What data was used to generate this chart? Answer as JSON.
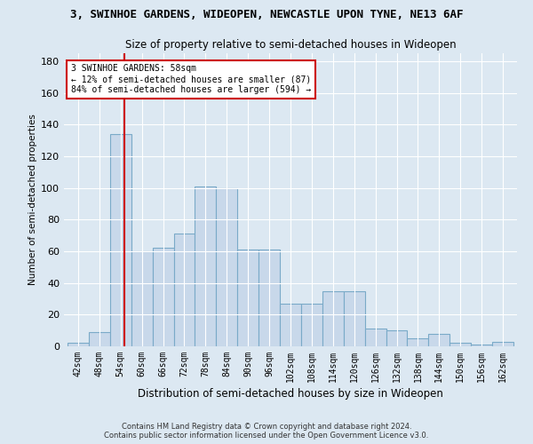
{
  "title1": "3, SWINHOE GARDENS, WIDEOPEN, NEWCASTLE UPON TYNE, NE13 6AF",
  "title2": "Size of property relative to semi-detached houses in Wideopen",
  "xlabel": "Distribution of semi-detached houses by size in Wideopen",
  "ylabel": "Number of semi-detached properties",
  "bins": [
    42,
    48,
    54,
    60,
    66,
    72,
    78,
    84,
    90,
    96,
    102,
    108,
    114,
    120,
    126,
    132,
    138,
    144,
    150,
    156,
    162
  ],
  "values": [
    2,
    9,
    134,
    60,
    62,
    71,
    101,
    100,
    61,
    61,
    27,
    27,
    35,
    35,
    11,
    10,
    5,
    8,
    2,
    1,
    3
  ],
  "bar_color": "#c8d8ea",
  "bar_edge_color": "#7aaac8",
  "red_line_x": 58,
  "annotation_text1": "3 SWINHOE GARDENS: 58sqm",
  "annotation_text2": "← 12% of semi-detached houses are smaller (87)",
  "annotation_text3": "84% of semi-detached houses are larger (594) →",
  "annotation_box_color": "white",
  "annotation_box_edge": "#cc0000",
  "red_line_color": "#cc0000",
  "ylim": [
    0,
    185
  ],
  "yticks": [
    0,
    20,
    40,
    60,
    80,
    100,
    120,
    140,
    160,
    180
  ],
  "footer1": "Contains HM Land Registry data © Crown copyright and database right 2024.",
  "footer2": "Contains public sector information licensed under the Open Government Licence v3.0.",
  "bg_color": "#dce8f2",
  "grid_color": "white"
}
